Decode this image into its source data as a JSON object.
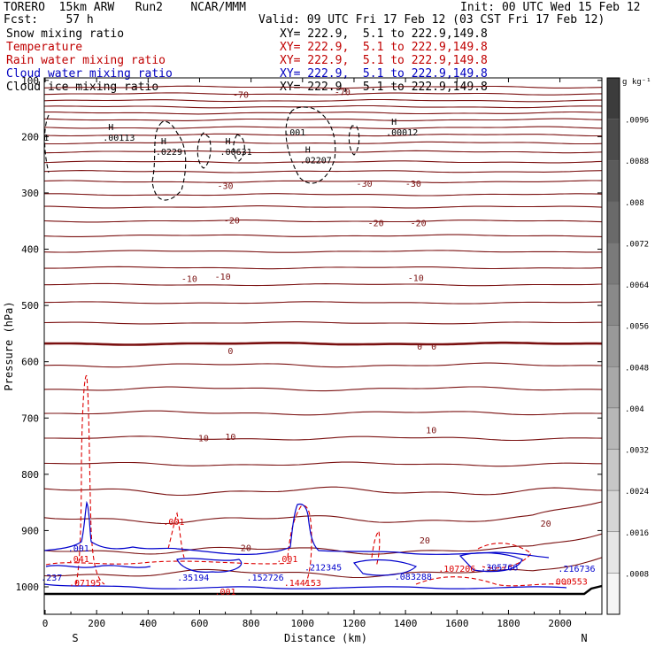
{
  "header": {
    "model": "TORERO  15km ARW   Run2    NCAR/MMM",
    "init": "Init: 00 UTC Wed 15 Feb 12",
    "fcst": "Fcst:    57 h",
    "valid": "Valid: 09 UTC Fri 17 Feb 12 (03 CST Fri 17 Feb 12)",
    "fields": [
      {
        "label": "Snow mixing ratio",
        "xy": "XY= 222.9,  5.1 to 222.9,149.8",
        "color": "#000000"
      },
      {
        "label": "Temperature",
        "xy": "XY= 222.9,  5.1 to 222.9,149.8",
        "color": "#c00000"
      },
      {
        "label": "Rain water mixing ratio",
        "xy": "XY= 222.9,  5.1 to 222.9,149.8",
        "color": "#c00000"
      },
      {
        "label": "Cloud water mixing ratio",
        "xy": "XY= 222.9,  5.1 to 222.9,149.8",
        "color": "#0000c0"
      },
      {
        "label": "Cloud ice mixing ratio",
        "xy": "XY= 222.9,  5.1 to 222.9,149.8",
        "color": "#000000"
      }
    ]
  },
  "chart_data": {
    "type": "contour",
    "xlabel": "Distance (km)",
    "ylabel": "Pressure (hPa)",
    "xlim": [
      0,
      2180
    ],
    "ylim": [
      1020,
      100
    ],
    "x_ticks": [
      "0",
      "200",
      "400",
      "600",
      "800",
      "1000",
      "1200",
      "1400",
      "1600",
      "1800",
      "2000"
    ],
    "x_tick_values": [
      0,
      200,
      400,
      600,
      800,
      1000,
      1200,
      1400,
      1600,
      1800,
      2000
    ],
    "y_ticks": [
      "100",
      "200",
      "300",
      "400",
      "500",
      "600",
      "700",
      "800",
      "900",
      "1000"
    ],
    "y_tick_values": [
      100,
      200,
      300,
      400,
      500,
      600,
      700,
      800,
      900,
      1000
    ],
    "endpoints": {
      "left": "S",
      "right": "N"
    },
    "colorbar": {
      "unit": "g kg⁻¹",
      "labels": [
        ".0096",
        ".0088",
        ".008",
        ".0072",
        ".0064",
        ".0056",
        ".0048",
        ".004",
        ".0032",
        ".0024",
        ".0016",
        ".0008"
      ]
    },
    "temperature_contour_labels": [
      {
        "text": "-70",
        "x": 760,
        "p": 125
      },
      {
        "text": "-70",
        "x": 1155,
        "p": 120
      },
      {
        "text": "-30",
        "x": 700,
        "p": 287
      },
      {
        "text": "-30",
        "x": 1240,
        "p": 283
      },
      {
        "text": "-30",
        "x": 1430,
        "p": 283
      },
      {
        "text": "-20",
        "x": 725,
        "p": 348
      },
      {
        "text": "-20",
        "x": 1285,
        "p": 353
      },
      {
        "text": "-20",
        "x": 1450,
        "p": 353
      },
      {
        "text": "-10",
        "x": 560,
        "p": 452
      },
      {
        "text": "-10",
        "x": 690,
        "p": 448
      },
      {
        "text": "-10",
        "x": 1440,
        "p": 450
      },
      {
        "text": "0",
        "x": 720,
        "p": 580
      },
      {
        "text": "0",
        "x": 1455,
        "p": 572
      },
      {
        "text": "0",
        "x": 1510,
        "p": 572
      },
      {
        "text": "10",
        "x": 615,
        "p": 735
      },
      {
        "text": "10",
        "x": 720,
        "p": 733
      },
      {
        "text": "10",
        "x": 1500,
        "p": 721
      },
      {
        "text": "20",
        "x": 780,
        "p": 930
      },
      {
        "text": "20",
        "x": 1475,
        "p": 917
      },
      {
        "text": "20",
        "x": 1945,
        "p": 887
      }
    ],
    "snow_maxima": [
      {
        "label": "H",
        "value": ".00113",
        "x": 245,
        "p": 195
      },
      {
        "label": "H",
        "value": ".0229",
        "x": 450,
        "p": 220
      },
      {
        "label": "H",
        "value": ".00631",
        "x": 700,
        "p": 220
      },
      {
        "label": "H",
        "value": ".02207",
        "x": 1010,
        "p": 235
      },
      {
        "label": "H",
        "value": ".00012",
        "x": 1345,
        "p": 185
      },
      {
        "label": "",
        "value": ".001",
        "x": 950,
        "p": 185
      },
      {
        "label": "",
        "value": "1",
        "x": 15,
        "p": 195
      }
    ],
    "rain_labels": [
      {
        "value": ".001",
        "x": 500,
        "p": 884
      },
      {
        "value": ".041",
        "x": 130,
        "p": 950
      },
      {
        "value": ".001",
        "x": 940,
        "p": 950
      },
      {
        "value": ".107206",
        "x": 1600,
        "p": 967
      },
      {
        "value": ".000553",
        "x": 2035,
        "p": 990
      },
      {
        "value": ".07195",
        "x": 155,
        "p": 992
      },
      {
        "value": ".144153",
        "x": 1000,
        "p": 992
      },
      {
        "value": ".001",
        "x": 700,
        "p": 1008
      }
    ],
    "cloud_water_labels": [
      {
        "value": ".001",
        "x": 130,
        "p": 931
      },
      {
        "value": ".237",
        "x": 25,
        "p": 983
      },
      {
        "value": ".35194",
        "x": 575,
        "p": 983
      },
      {
        "value": ".152726",
        "x": 855,
        "p": 983
      },
      {
        "value": ".212345",
        "x": 1080,
        "p": 965
      },
      {
        "value": ".083288",
        "x": 1430,
        "p": 981
      },
      {
        "value": ".305766",
        "x": 1765,
        "p": 965
      },
      {
        "value": ".216736",
        "x": 2065,
        "p": 967
      }
    ],
    "colors": {
      "temperature": "#7a1010",
      "rain": "#dd0000",
      "cloud_water": "#0000cc",
      "snow": "#000000"
    }
  }
}
